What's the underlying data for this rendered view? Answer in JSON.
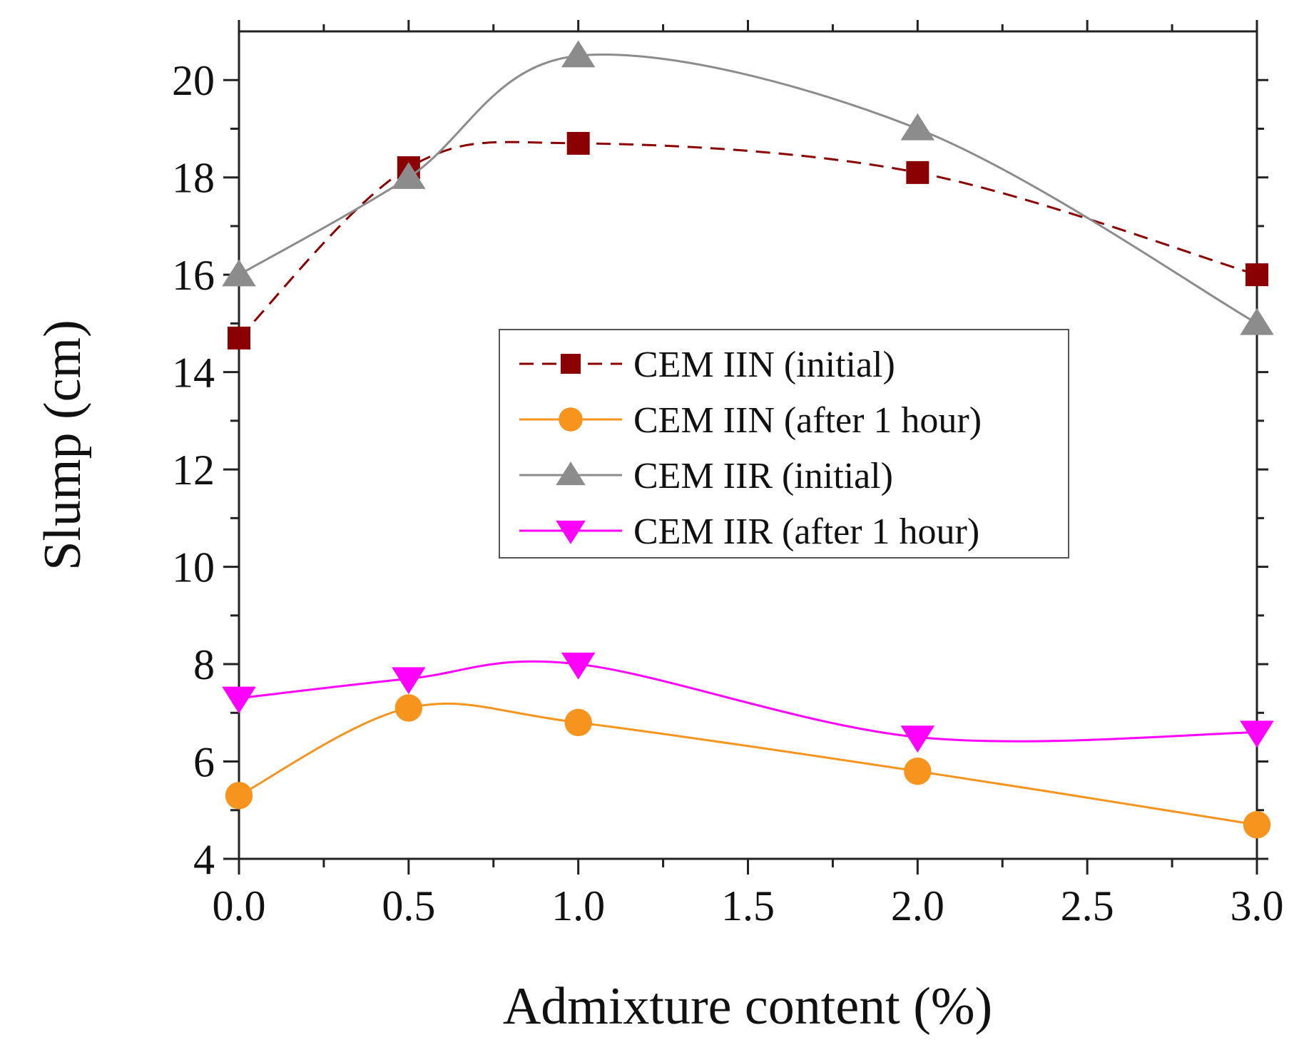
{
  "chart_data": {
    "type": "line",
    "title": "",
    "xlabel": "Admixture content (%)",
    "ylabel": "Slump (cm)",
    "xlim": [
      0,
      3
    ],
    "ylim": [
      4,
      21
    ],
    "x_ticks": [
      0,
      0.5,
      1,
      1.5,
      2,
      2.5,
      3
    ],
    "x_tick_labels": [
      "0.0",
      "0.5",
      "1.0",
      "1.5",
      "2.0",
      "2.5",
      "3.0"
    ],
    "y_ticks": [
      4,
      6,
      8,
      10,
      12,
      14,
      16,
      18,
      20
    ],
    "y_tick_labels": [
      "4",
      "6",
      "8",
      "10",
      "12",
      "14",
      "16",
      "18",
      "20"
    ],
    "grid": false,
    "legend_position": "center-right",
    "x": [
      0,
      0.5,
      1,
      2,
      3
    ],
    "series": [
      {
        "name": "CEM IIN (initial)",
        "values": [
          14.7,
          18.2,
          18.7,
          18.1,
          16.0
        ],
        "color": "#8b0000",
        "marker": "square",
        "dashed": true
      },
      {
        "name": "CEM IIN (after 1 hour)",
        "values": [
          5.3,
          7.1,
          6.8,
          5.8,
          4.7
        ],
        "color": "#f7941d",
        "marker": "circle",
        "dashed": false
      },
      {
        "name": "CEM IIR (initial)",
        "values": [
          16.0,
          18.0,
          20.5,
          19.0,
          15.0
        ],
        "color": "#8c8c8c",
        "marker": "triangle-up",
        "dashed": false
      },
      {
        "name": "CEM IIR (after 1 hour)",
        "values": [
          7.3,
          7.7,
          8.0,
          6.5,
          6.6
        ],
        "color": "#ff00ff",
        "marker": "triangle-down",
        "dashed": false
      }
    ]
  }
}
